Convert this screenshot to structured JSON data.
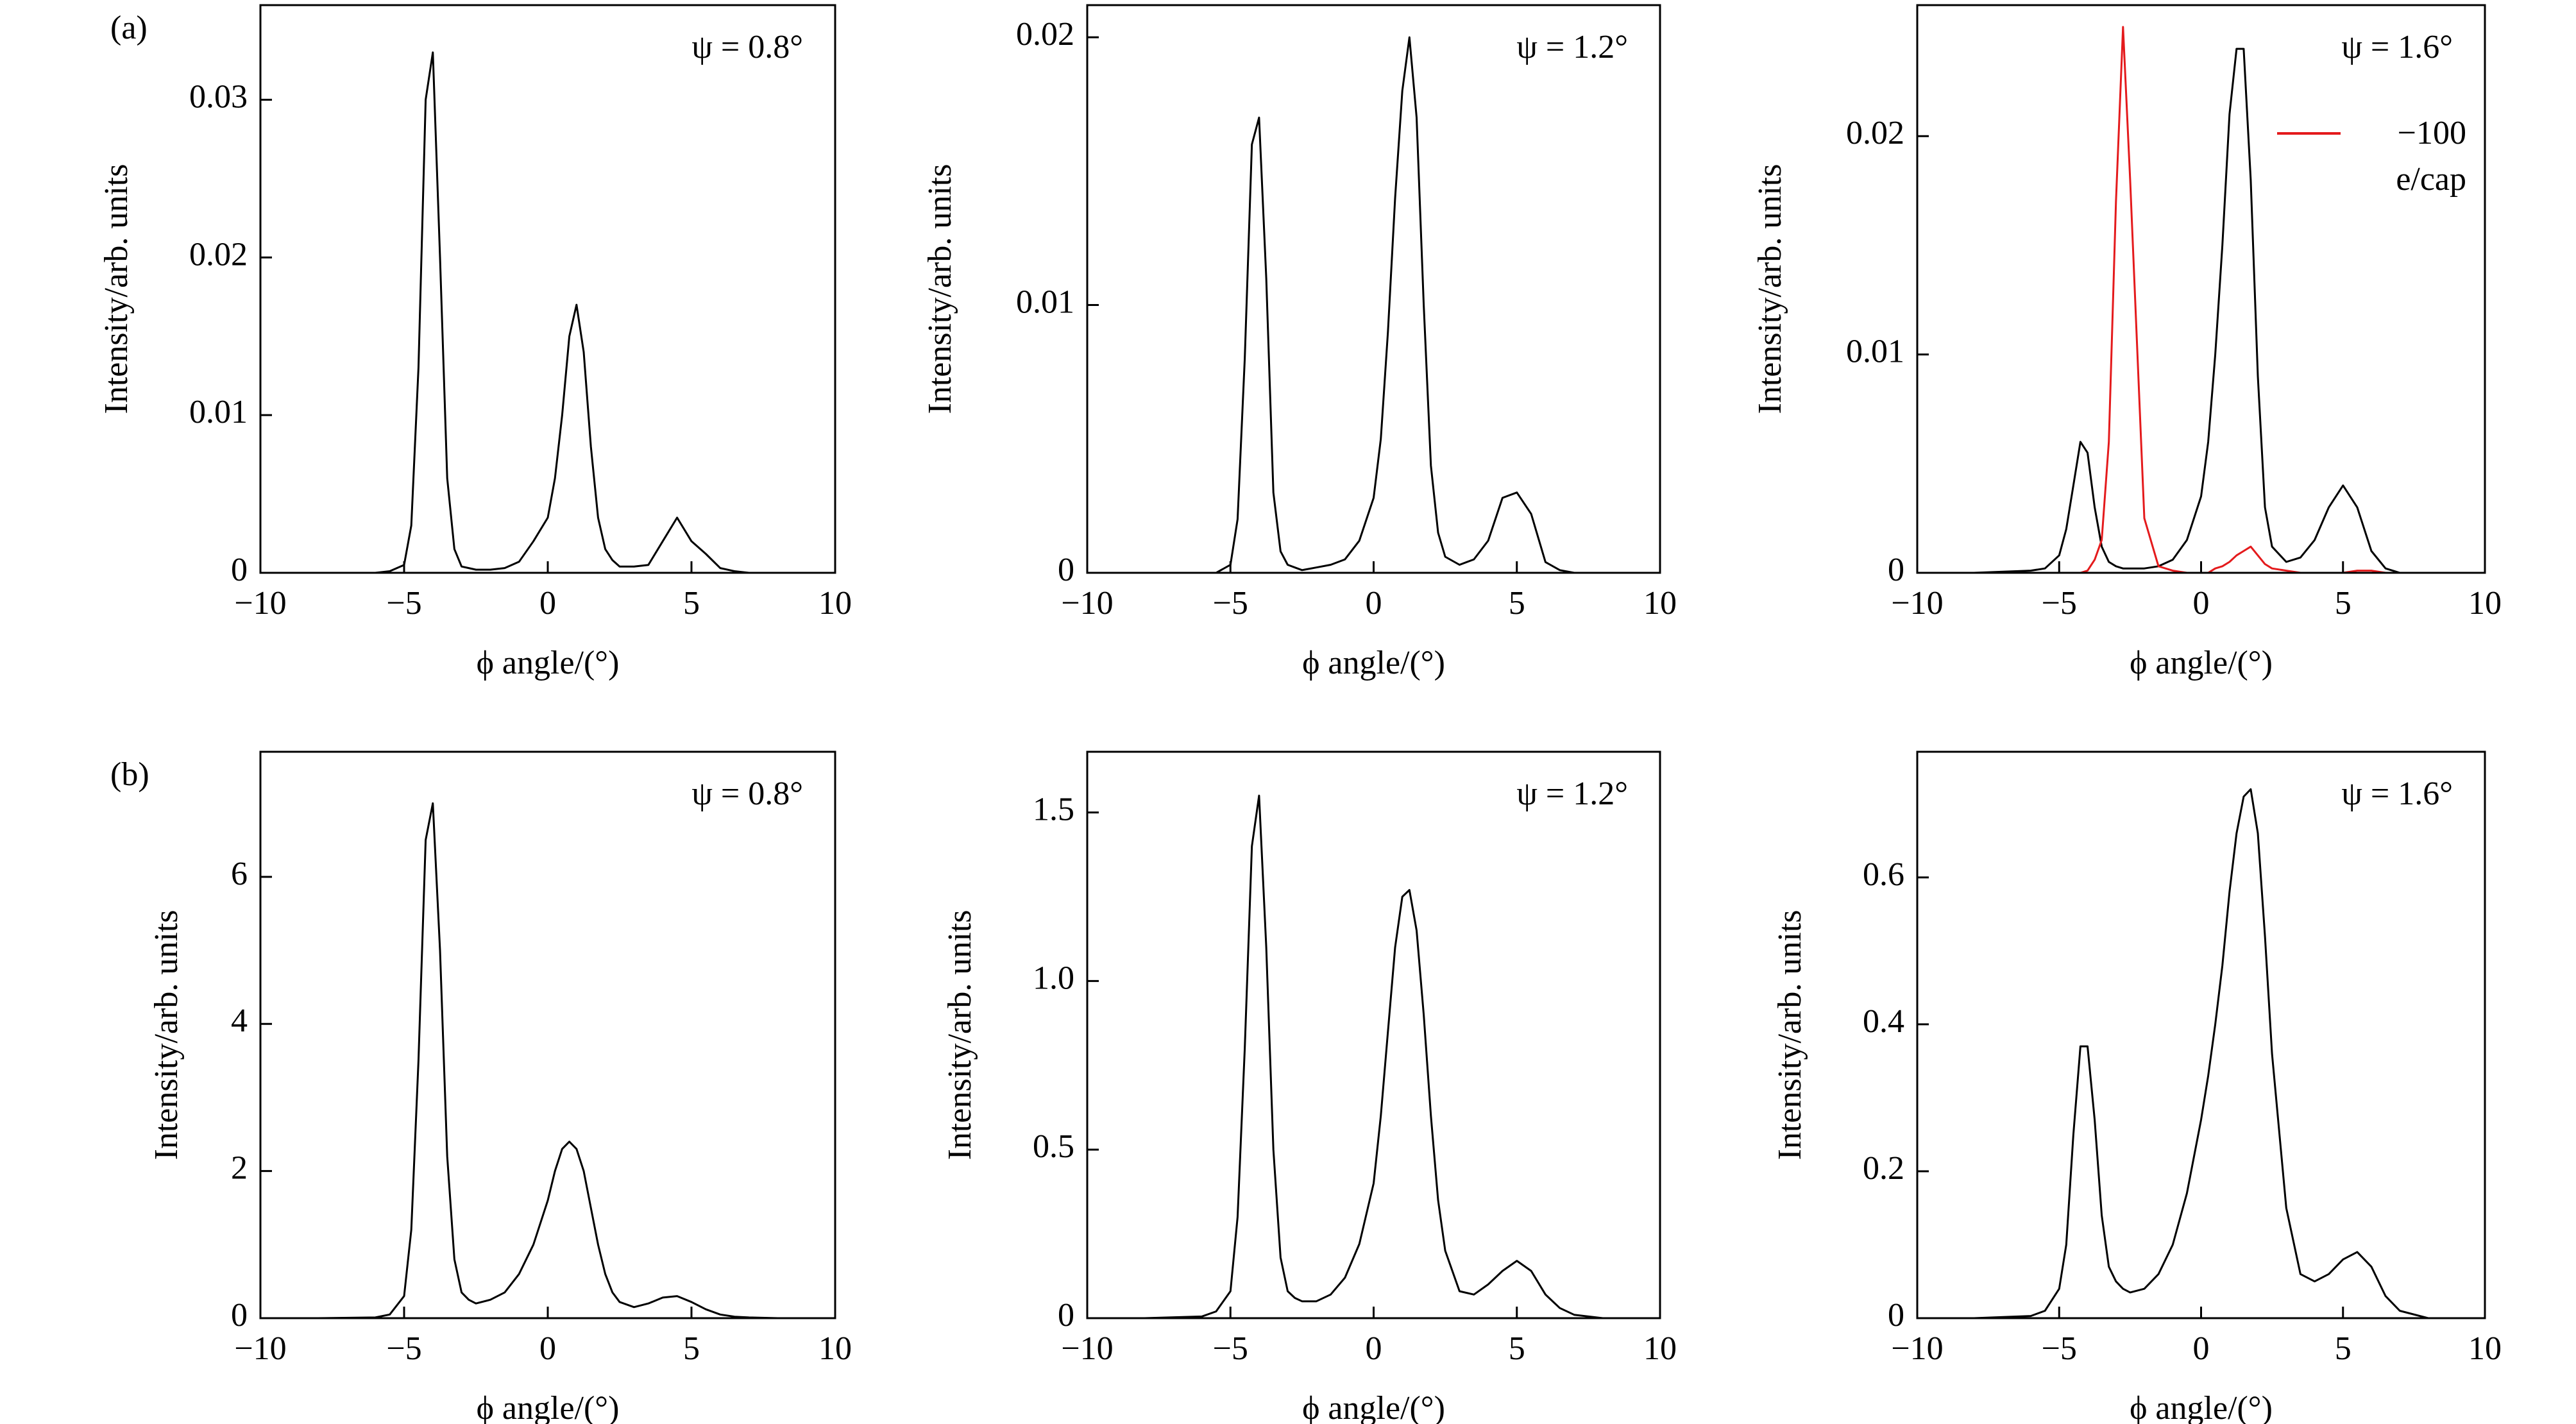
{
  "chart_data": [
    {
      "type": "line",
      "panel_label": "(a)",
      "annotation": "ψ = 0.8°",
      "xlabel": "ϕ angle/(°)",
      "ylabel": "Intensity/arb. units",
      "xlim": [
        -10,
        10
      ],
      "xticks": [
        {
          "value": -10,
          "label": "−10"
        },
        {
          "value": -5,
          "label": "−5"
        },
        0,
        5,
        10
      ],
      "ylim": [
        0,
        0.036
      ],
      "yticks": [
        0,
        0.01,
        0.02,
        0.03
      ],
      "x": [
        -10,
        -8,
        -6,
        -5.5,
        -5,
        -4.75,
        -4.5,
        -4.25,
        -4,
        -3.75,
        -3.5,
        -3.25,
        -3,
        -2.75,
        -2.5,
        -2,
        -1.5,
        -1,
        -0.5,
        0,
        0.25,
        0.5,
        0.75,
        1,
        1.25,
        1.5,
        1.75,
        2,
        2.25,
        2.5,
        3,
        3.5,
        4,
        4.5,
        5,
        5.5,
        6,
        6.5,
        7,
        8,
        9,
        10
      ],
      "series": [
        {
          "color": "#000000",
          "values": [
            0,
            0,
            0,
            0.0001,
            0.0005,
            0.003,
            0.013,
            0.03,
            0.033,
            0.02,
            0.006,
            0.0015,
            0.0004,
            0.0003,
            0.0002,
            0.0002,
            0.0003,
            0.0007,
            0.002,
            0.0035,
            0.006,
            0.01,
            0.015,
            0.017,
            0.014,
            0.008,
            0.0035,
            0.0015,
            0.0008,
            0.0004,
            0.0004,
            0.0005,
            0.002,
            0.0035,
            0.002,
            0.0012,
            0.0003,
            0.0001,
            0,
            0,
            0,
            0
          ]
        }
      ]
    },
    {
      "type": "line",
      "annotation": "ψ = 1.2°",
      "xlabel": "ϕ angle/(°)",
      "ylabel": "Intensity/arb. units",
      "xlim": [
        -10,
        10
      ],
      "xticks": [
        {
          "value": -10,
          "label": "−10"
        },
        {
          "value": -5,
          "label": "−5"
        },
        0,
        5,
        10
      ],
      "ylim": [
        0,
        0.0212
      ],
      "yticks": [
        0,
        0.01,
        0.02
      ],
      "x": [
        -10,
        -8,
        -6,
        -5.5,
        -5,
        -4.75,
        -4.5,
        -4.25,
        -4,
        -3.75,
        -3.5,
        -3.25,
        -3,
        -2.75,
        -2.5,
        -2,
        -1.5,
        -1,
        -0.5,
        0,
        0.25,
        0.5,
        0.75,
        1,
        1.25,
        1.5,
        1.75,
        2,
        2.25,
        2.5,
        3,
        3.5,
        4,
        4.5,
        5,
        5.5,
        6,
        6.5,
        7,
        8,
        9,
        10
      ],
      "series": [
        {
          "color": "#000000",
          "values": [
            0,
            0,
            0,
            0,
            0.0003,
            0.002,
            0.008,
            0.016,
            0.017,
            0.011,
            0.003,
            0.0008,
            0.0003,
            0.0002,
            0.0001,
            0.0002,
            0.0003,
            0.0005,
            0.0012,
            0.0028,
            0.005,
            0.009,
            0.014,
            0.018,
            0.02,
            0.017,
            0.01,
            0.004,
            0.0015,
            0.0006,
            0.0003,
            0.0005,
            0.0012,
            0.0028,
            0.003,
            0.0022,
            0.0004,
            0.0001,
            0,
            0,
            0,
            0
          ]
        }
      ]
    },
    {
      "type": "line",
      "annotation": "ψ = 1.6°",
      "xlabel": "ϕ angle/(°)",
      "ylabel": "Intensity/arb. units",
      "xlim": [
        -10,
        10
      ],
      "xticks": [
        {
          "value": -10,
          "label": "−10"
        },
        {
          "value": -5,
          "label": "−5"
        },
        0,
        5,
        10
      ],
      "ylim": [
        0,
        0.026
      ],
      "yticks": [
        0,
        0.01,
        0.02
      ],
      "x": [
        -10,
        -8,
        -6,
        -5.5,
        -5,
        -4.75,
        -4.5,
        -4.25,
        -4,
        -3.75,
        -3.5,
        -3.25,
        -3,
        -2.75,
        -2.5,
        -2,
        -1.5,
        -1,
        -0.5,
        0,
        0.25,
        0.5,
        0.75,
        1,
        1.25,
        1.5,
        1.75,
        2,
        2.25,
        2.5,
        3,
        3.5,
        4,
        4.5,
        5,
        5.5,
        6,
        6.5,
        7,
        8,
        9,
        10
      ],
      "series": [
        {
          "color": "#000000",
          "values": [
            0,
            0,
            0.0001,
            0.0002,
            0.0008,
            0.002,
            0.004,
            0.006,
            0.0055,
            0.003,
            0.0012,
            0.0005,
            0.0003,
            0.0002,
            0.0002,
            0.0002,
            0.0003,
            0.0006,
            0.0015,
            0.0035,
            0.006,
            0.01,
            0.015,
            0.021,
            0.024,
            0.024,
            0.018,
            0.009,
            0.003,
            0.0012,
            0.0005,
            0.0007,
            0.0015,
            0.003,
            0.004,
            0.003,
            0.001,
            0.0002,
            0,
            0,
            0,
            0
          ]
        },
        {
          "name": "−100 e/cap",
          "color": "#e41a1c",
          "values": [
            0,
            0,
            0,
            0,
            0,
            0,
            0,
            0,
            0.0001,
            0.0006,
            0.0015,
            0.006,
            0.017,
            0.025,
            0.018,
            0.0025,
            0.0003,
            0.0001,
            0,
            0,
            0,
            0.0002,
            0.0003,
            0.0005,
            0.0008,
            0.001,
            0.0012,
            0.0008,
            0.0004,
            0.0002,
            0.0001,
            0,
            0,
            0,
            0,
            0.0001,
            0.0001,
            0,
            0,
            0,
            0,
            0
          ]
        }
      ]
    },
    {
      "type": "line",
      "panel_label": "(b)",
      "annotation": "ψ = 0.8°",
      "xlabel": "ϕ angle/(°)",
      "ylabel": "Intensity/arb. units",
      "xlim": [
        -10,
        10
      ],
      "xticks": [
        {
          "value": -10,
          "label": "−10"
        },
        {
          "value": -5,
          "label": "−5"
        },
        0,
        5,
        10
      ],
      "ylim": [
        0,
        7.7
      ],
      "yticks": [
        0,
        2,
        4,
        6
      ],
      "x": [
        -10,
        -8,
        -6,
        -5.5,
        -5,
        -4.75,
        -4.5,
        -4.25,
        -4,
        -3.75,
        -3.5,
        -3.25,
        -3,
        -2.75,
        -2.5,
        -2,
        -1.5,
        -1,
        -0.5,
        0,
        0.25,
        0.5,
        0.75,
        1,
        1.25,
        1.5,
        1.75,
        2,
        2.25,
        2.5,
        3,
        3.5,
        4,
        4.5,
        5,
        5.5,
        6,
        6.5,
        7,
        8,
        9,
        10
      ],
      "series": [
        {
          "color": "#000000",
          "values": [
            0,
            0,
            0.01,
            0.05,
            0.3,
            1.2,
            3.5,
            6.5,
            7.0,
            5.0,
            2.2,
            0.8,
            0.35,
            0.25,
            0.2,
            0.25,
            0.35,
            0.6,
            1.0,
            1.6,
            2.0,
            2.3,
            2.4,
            2.3,
            2.0,
            1.5,
            1.0,
            0.6,
            0.35,
            0.22,
            0.15,
            0.2,
            0.28,
            0.3,
            0.22,
            0.12,
            0.05,
            0.02,
            0.01,
            0,
            0,
            0
          ]
        }
      ]
    },
    {
      "type": "line",
      "annotation": "ψ = 1.2°",
      "xlabel": "ϕ angle/(°)",
      "ylabel": "Intensity/arb. units",
      "xlim": [
        -10,
        10
      ],
      "xticks": [
        {
          "value": -10,
          "label": "−10"
        },
        {
          "value": -5,
          "label": "−5"
        },
        0,
        5,
        10
      ],
      "ylim": [
        0,
        1.68
      ],
      "yticks": [
        0,
        0.5,
        {
          "value": 1,
          "label": "1.0"
        },
        1.5
      ],
      "x": [
        -10,
        -8,
        -6,
        -5.5,
        -5,
        -4.75,
        -4.5,
        -4.25,
        -4,
        -3.75,
        -3.5,
        -3.25,
        -3,
        -2.75,
        -2.5,
        -2,
        -1.5,
        -1,
        -0.5,
        0,
        0.25,
        0.5,
        0.75,
        1,
        1.25,
        1.5,
        1.75,
        2,
        2.25,
        2.5,
        3,
        3.5,
        4,
        4.5,
        5,
        5.5,
        6,
        6.5,
        7,
        8,
        9,
        10
      ],
      "series": [
        {
          "color": "#000000",
          "values": [
            0,
            0,
            0.005,
            0.02,
            0.08,
            0.3,
            0.8,
            1.4,
            1.55,
            1.1,
            0.5,
            0.18,
            0.08,
            0.06,
            0.05,
            0.05,
            0.07,
            0.12,
            0.22,
            0.4,
            0.6,
            0.85,
            1.1,
            1.25,
            1.27,
            1.15,
            0.9,
            0.6,
            0.35,
            0.2,
            0.08,
            0.07,
            0.1,
            0.14,
            0.17,
            0.14,
            0.07,
            0.03,
            0.01,
            0,
            0,
            0
          ]
        }
      ]
    },
    {
      "type": "line",
      "annotation": "ψ = 1.6°",
      "xlabel": "ϕ angle/(°)",
      "ylabel": "Intensity/arb. units",
      "xlim": [
        -10,
        10
      ],
      "xticks": [
        {
          "value": -10,
          "label": "−10"
        },
        {
          "value": -5,
          "label": "−5"
        },
        0,
        5,
        10
      ],
      "ylim": [
        0,
        0.771
      ],
      "yticks": [
        0,
        0.2,
        0.4,
        0.6
      ],
      "x": [
        -10,
        -8,
        -6,
        -5.5,
        -5,
        -4.75,
        -4.5,
        -4.25,
        -4,
        -3.75,
        -3.5,
        -3.25,
        -3,
        -2.75,
        -2.5,
        -2,
        -1.5,
        -1,
        -0.5,
        0,
        0.25,
        0.5,
        0.75,
        1,
        1.25,
        1.5,
        1.75,
        2,
        2.25,
        2.5,
        3,
        3.5,
        4,
        4.5,
        5,
        5.5,
        6,
        6.5,
        7,
        8,
        9,
        10
      ],
      "series": [
        {
          "color": "#000000",
          "values": [
            0,
            0,
            0.003,
            0.01,
            0.04,
            0.1,
            0.25,
            0.37,
            0.37,
            0.27,
            0.14,
            0.07,
            0.05,
            0.04,
            0.035,
            0.04,
            0.06,
            0.1,
            0.17,
            0.27,
            0.33,
            0.4,
            0.48,
            0.58,
            0.66,
            0.71,
            0.72,
            0.66,
            0.52,
            0.36,
            0.15,
            0.06,
            0.05,
            0.06,
            0.08,
            0.09,
            0.07,
            0.03,
            0.01,
            0,
            0,
            0
          ]
        }
      ]
    }
  ]
}
